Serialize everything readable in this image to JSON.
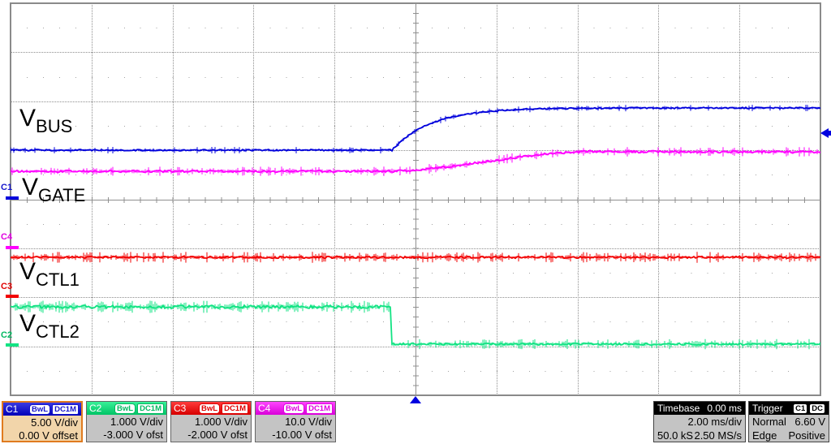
{
  "colors": {
    "c1": "#0000dc",
    "c2": "#12e383",
    "c3": "#f20000",
    "c4": "#ff00ff",
    "grid": "#8e8e8e",
    "selected_border": "#e07b1f",
    "selected_bg": "#f2d5aa",
    "panel_bg": "#c4c4c4",
    "trigger_marker": "#0000e0"
  },
  "trace_labels": [
    {
      "main": "V",
      "sub": "BUS"
    },
    {
      "main": "V",
      "sub": "GATE"
    },
    {
      "main": "V",
      "sub": "CTL1"
    },
    {
      "main": "V",
      "sub": "CTL2"
    }
  ],
  "offset_markers": [
    {
      "id": "C1"
    },
    {
      "id": "C4"
    },
    {
      "id": "C3"
    },
    {
      "id": "C2"
    }
  ],
  "channels": [
    {
      "id": "C1",
      "bandwidth": "BwL",
      "coupling": "DC1M",
      "scale": "5.00 V/div",
      "offset": "0.00 V offset",
      "selected": true
    },
    {
      "id": "C2",
      "bandwidth": "BwL",
      "coupling": "DC1M",
      "scale": "1.000 V/div",
      "offset": "-3.000 V ofst",
      "selected": false
    },
    {
      "id": "C3",
      "bandwidth": "BwL",
      "coupling": "DC1M",
      "scale": "1.000 V/div",
      "offset": "-2.000 V ofst",
      "selected": false
    },
    {
      "id": "C4",
      "bandwidth": "BwL",
      "coupling": "DC1M",
      "scale": "10.0 V/div",
      "offset": "-10.00 V ofst",
      "selected": false
    }
  ],
  "timebase": {
    "label": "Timebase",
    "position": "0.00 ms",
    "scale": "2.00 ms/div",
    "samples": "50.0 kS",
    "rate": "2.50 MS/s"
  },
  "trigger": {
    "label": "Trigger",
    "source": "C1",
    "coupling": "DC",
    "mode": "Normal",
    "level": "6.60 V",
    "type": "Edge",
    "slope": "Positive"
  },
  "waveforms": [
    {
      "name": "vctl1",
      "channel": "C3",
      "color": "#f20000",
      "type": "flat",
      "base": 317,
      "final": 317,
      "noise": 2.2,
      "spike": 4.5,
      "spike_p": 0.3
    },
    {
      "name": "vctl2",
      "channel": "C2",
      "color": "#12e383",
      "type": "step",
      "base": 378,
      "final": 424,
      "t_start": 483,
      "noise": 3.6,
      "noise_after": 2.4,
      "spike": 4,
      "spike_p": 0.3
    },
    {
      "name": "vgate",
      "channel": "C4",
      "color": "#ff00ff",
      "type": "smoothstep",
      "base": 211,
      "final": 187,
      "t_start": 472,
      "t_end": 728,
      "noise": 2.4,
      "spike": 3.5,
      "spike_p": 0.25
    },
    {
      "name": "vbus",
      "channel": "C1",
      "color": "#0000dc",
      "type": "exp",
      "base": 185,
      "final": 133,
      "t_start": 483,
      "tau": 48,
      "noise": 1.6,
      "spike": 2.5,
      "spike_p": 0.18
    }
  ]
}
